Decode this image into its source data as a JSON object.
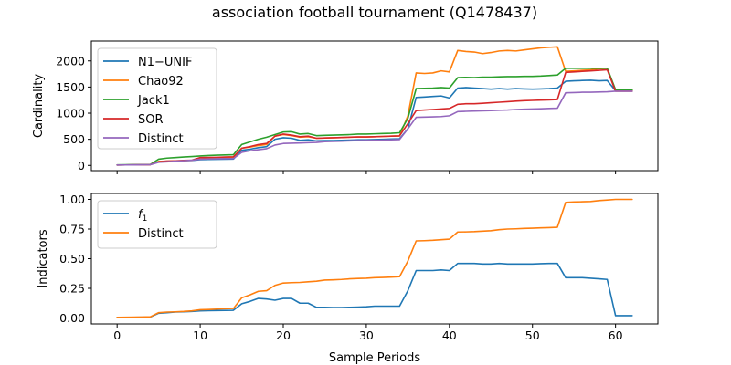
{
  "figure": {
    "title": "association football tournament (Q1478437)"
  },
  "chart_data": [
    {
      "type": "line",
      "ylabel": "Cardinality",
      "xlabel": "",
      "xlim": [
        -3.1,
        65.1
      ],
      "ylim": [
        -100,
        2380
      ],
      "xticks": [
        0,
        10,
        20,
        30,
        40,
        50,
        60
      ],
      "xtick_labels_visible": false,
      "yticks": [
        0,
        500,
        1000,
        1500,
        2000
      ],
      "ytick_labels": [
        "0",
        "500",
        "1000",
        "1500",
        "2000"
      ],
      "grid": false,
      "legend": "upper-left",
      "x": [
        0,
        1,
        2,
        3,
        4,
        5,
        6,
        7,
        8,
        9,
        10,
        11,
        12,
        13,
        14,
        15,
        16,
        17,
        18,
        19,
        20,
        21,
        22,
        23,
        24,
        25,
        26,
        27,
        28,
        29,
        30,
        31,
        32,
        33,
        34,
        35,
        36,
        37,
        38,
        39,
        40,
        41,
        42,
        43,
        44,
        45,
        46,
        47,
        48,
        49,
        50,
        51,
        52,
        53,
        54,
        55,
        56,
        57,
        58,
        59,
        60,
        61,
        62
      ],
      "series": [
        {
          "name": "N1−UNIF",
          "color": "#1f77b4",
          "values": [
            8,
            9,
            10,
            12,
            15,
            70,
            80,
            85,
            90,
            95,
            110,
            115,
            118,
            120,
            122,
            290,
            310,
            340,
            360,
            500,
            530,
            520,
            480,
            490,
            470,
            475,
            475,
            480,
            485,
            490,
            490,
            495,
            500,
            505,
            510,
            700,
            1300,
            1310,
            1320,
            1330,
            1290,
            1480,
            1490,
            1480,
            1470,
            1460,
            1470,
            1460,
            1470,
            1465,
            1460,
            1465,
            1470,
            1480,
            1610,
            1620,
            1625,
            1630,
            1620,
            1625,
            1430,
            1430,
            1430
          ]
        },
        {
          "name": "Chao92",
          "color": "#ff7f0e",
          "values": [
            8,
            9,
            10,
            12,
            15,
            75,
            82,
            88,
            92,
            98,
            145,
            148,
            150,
            152,
            155,
            330,
            350,
            380,
            400,
            560,
            590,
            570,
            540,
            550,
            520,
            525,
            530,
            535,
            540,
            545,
            545,
            550,
            555,
            560,
            565,
            950,
            1770,
            1760,
            1770,
            1810,
            1790,
            2200,
            2180,
            2170,
            2140,
            2160,
            2190,
            2200,
            2190,
            2210,
            2230,
            2250,
            2260,
            2270,
            1800,
            1810,
            1820,
            1830,
            1850,
            1860,
            1440,
            1440,
            1440
          ]
        },
        {
          "name": "Jack1",
          "color": "#2ca02c",
          "values": [
            10,
            12,
            15,
            18,
            20,
            120,
            140,
            150,
            160,
            170,
            180,
            190,
            195,
            200,
            205,
            400,
            450,
            500,
            540,
            590,
            640,
            645,
            600,
            610,
            570,
            575,
            580,
            585,
            590,
            600,
            600,
            605,
            610,
            615,
            625,
            900,
            1470,
            1475,
            1480,
            1490,
            1480,
            1680,
            1685,
            1680,
            1690,
            1690,
            1695,
            1700,
            1700,
            1705,
            1705,
            1710,
            1720,
            1730,
            1860,
            1860,
            1860,
            1860,
            1860,
            1860,
            1450,
            1450,
            1450
          ]
        },
        {
          "name": "SOR",
          "color": "#d62728",
          "values": [
            8,
            9,
            10,
            12,
            15,
            70,
            82,
            88,
            95,
            100,
            150,
            152,
            155,
            160,
            165,
            330,
            360,
            400,
            420,
            560,
            600,
            580,
            550,
            560,
            520,
            525,
            530,
            535,
            540,
            545,
            545,
            550,
            555,
            560,
            565,
            800,
            1050,
            1060,
            1070,
            1080,
            1090,
            1170,
            1180,
            1180,
            1190,
            1200,
            1210,
            1220,
            1230,
            1240,
            1245,
            1250,
            1255,
            1260,
            1780,
            1790,
            1800,
            1810,
            1820,
            1830,
            1420,
            1420,
            1420
          ]
        },
        {
          "name": "Distinct",
          "color": "#9467bd",
          "values": [
            8,
            9,
            10,
            12,
            15,
            60,
            70,
            80,
            90,
            100,
            120,
            125,
            128,
            130,
            132,
            250,
            280,
            300,
            320,
            390,
            420,
            425,
            430,
            435,
            440,
            455,
            460,
            465,
            470,
            475,
            478,
            480,
            485,
            490,
            495,
            700,
            920,
            925,
            930,
            935,
            950,
            1030,
            1035,
            1040,
            1045,
            1050,
            1055,
            1060,
            1070,
            1075,
            1080,
            1085,
            1090,
            1095,
            1390,
            1395,
            1400,
            1400,
            1405,
            1410,
            1420,
            1420,
            1420
          ]
        }
      ]
    },
    {
      "type": "line",
      "ylabel": "Indicators",
      "xlabel": "Sample Periods",
      "xlim": [
        -3.1,
        65.1
      ],
      "ylim": [
        -0.05,
        1.05
      ],
      "xticks": [
        0,
        10,
        20,
        30,
        40,
        50,
        60
      ],
      "xtick_labels": [
        "0",
        "10",
        "20",
        "30",
        "40",
        "50",
        "60"
      ],
      "yticks": [
        0.0,
        0.25,
        0.5,
        0.75,
        1.0
      ],
      "ytick_labels": [
        "0.00",
        "0.25",
        "0.50",
        "0.75",
        "1.00"
      ],
      "grid": false,
      "legend": "upper-left",
      "x": [
        0,
        1,
        2,
        3,
        4,
        5,
        6,
        7,
        8,
        9,
        10,
        11,
        12,
        13,
        14,
        15,
        16,
        17,
        18,
        19,
        20,
        21,
        22,
        23,
        24,
        25,
        26,
        27,
        28,
        29,
        30,
        31,
        32,
        33,
        34,
        35,
        36,
        37,
        38,
        39,
        40,
        41,
        42,
        43,
        44,
        45,
        46,
        47,
        48,
        49,
        50,
        51,
        52,
        53,
        54,
        55,
        56,
        57,
        58,
        59,
        60,
        61,
        62
      ],
      "series": [
        {
          "name": "f1",
          "legend_label": "f",
          "legend_subscript": "1",
          "color": "#1f77b4",
          "values": [
            0.005,
            0.005,
            0.005,
            0.006,
            0.008,
            0.04,
            0.045,
            0.05,
            0.052,
            0.055,
            0.06,
            0.062,
            0.063,
            0.064,
            0.065,
            0.12,
            0.14,
            0.165,
            0.16,
            0.15,
            0.165,
            0.165,
            0.125,
            0.125,
            0.09,
            0.09,
            0.088,
            0.088,
            0.09,
            0.092,
            0.095,
            0.1,
            0.1,
            0.1,
            0.1,
            0.23,
            0.4,
            0.4,
            0.4,
            0.405,
            0.4,
            0.46,
            0.46,
            0.46,
            0.455,
            0.455,
            0.46,
            0.455,
            0.455,
            0.455,
            0.455,
            0.458,
            0.46,
            0.46,
            0.34,
            0.34,
            0.34,
            0.335,
            0.33,
            0.325,
            0.02,
            0.02,
            0.02
          ]
        },
        {
          "name": "Distinct",
          "legend_label": "Distinct",
          "color": "#ff7f0e",
          "values": [
            0.005,
            0.006,
            0.007,
            0.008,
            0.01,
            0.045,
            0.05,
            0.052,
            0.055,
            0.06,
            0.07,
            0.072,
            0.075,
            0.078,
            0.08,
            0.17,
            0.195,
            0.225,
            0.23,
            0.275,
            0.295,
            0.298,
            0.3,
            0.305,
            0.31,
            0.32,
            0.322,
            0.325,
            0.33,
            0.333,
            0.335,
            0.34,
            0.342,
            0.345,
            0.348,
            0.48,
            0.65,
            0.652,
            0.655,
            0.66,
            0.665,
            0.725,
            0.726,
            0.728,
            0.732,
            0.736,
            0.745,
            0.75,
            0.752,
            0.755,
            0.757,
            0.76,
            0.762,
            0.765,
            0.975,
            0.978,
            0.98,
            0.982,
            0.99,
            0.995,
            1.0,
            1.0,
            1.0
          ]
        }
      ]
    }
  ]
}
